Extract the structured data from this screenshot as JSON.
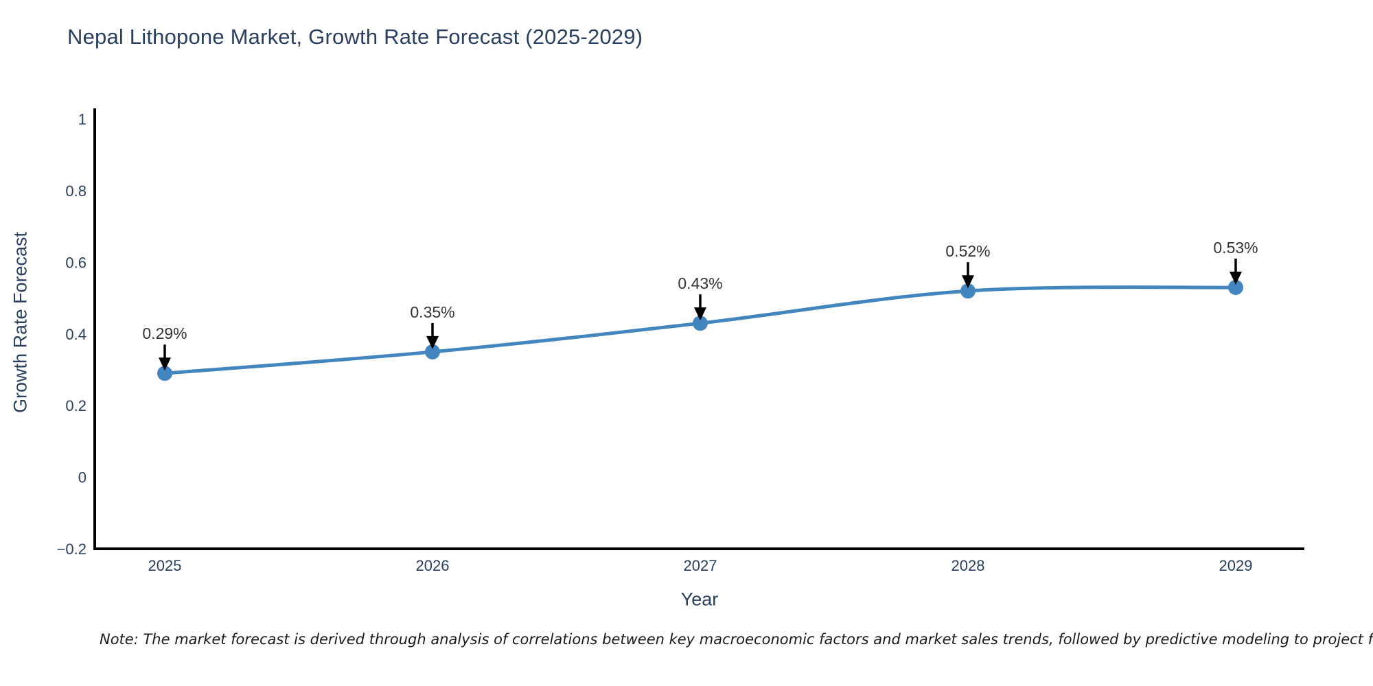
{
  "title": "Nepal Lithopone Market, Growth Rate Forecast (2025-2029)",
  "note": "Note: The market forecast is derived through analysis of correlations between key macroeconomic factors and market sales trends, followed by predictive modeling to project future sa",
  "chart_data": {
    "type": "line",
    "title": "Nepal Lithopone Market, Growth Rate Forecast (2025-2029)",
    "x": [
      "2025",
      "2026",
      "2027",
      "2028",
      "2029"
    ],
    "y": [
      0.29,
      0.35,
      0.43,
      0.52,
      0.53
    ],
    "point_labels": [
      "0.29%",
      "0.35%",
      "0.43%",
      "0.52%",
      "0.53%"
    ],
    "xlabel": "Year",
    "ylabel": "Growth Rate Forecast",
    "ylim": [
      -0.2,
      1.03
    ],
    "ytick_values": [
      1,
      0.8,
      0.6,
      0.4,
      0.2,
      0,
      -0.2
    ],
    "ytick_labels": [
      "1",
      "0.8",
      "0.6",
      "0.4",
      "0.2",
      "0",
      "−0.2"
    ],
    "grid": false,
    "legend": "none",
    "line_shape": "spline",
    "marker": "circle",
    "annotation_arrows": true,
    "colors": {
      "line": "#4285bf",
      "marker": "#4285bf",
      "annotation_text": "#333333",
      "arrow": "#000000",
      "axis": "#000000",
      "tick_label": "#2a3f5f",
      "title": "#2a3f5f"
    }
  }
}
